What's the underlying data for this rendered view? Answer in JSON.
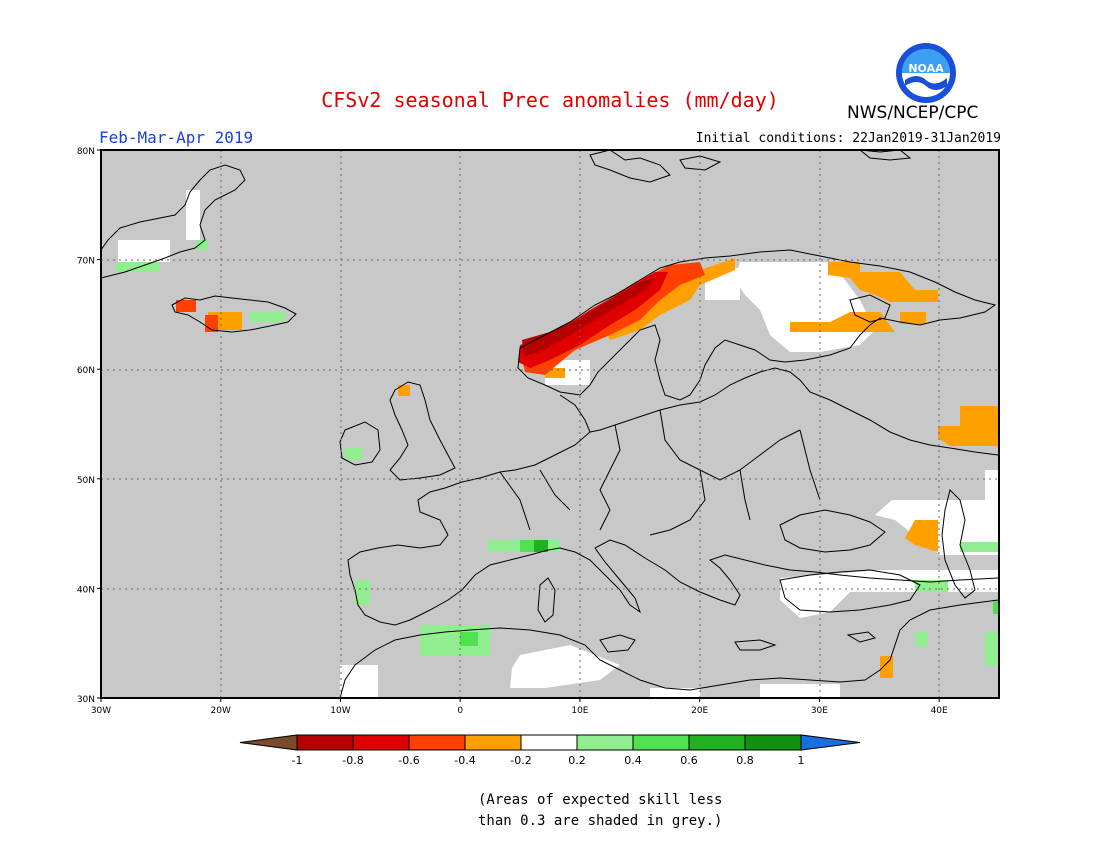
{
  "header": {
    "title": "CFSv2 seasonal Prec anomalies (mm/day)",
    "period": "Feb-Mar-Apr 2019",
    "initial_conditions": "Initial conditions: 22Jan2019-31Jan2019",
    "org": "NWS/NCEP/CPC",
    "logo_text": "NOAA"
  },
  "map": {
    "lat_labels": [
      "80N",
      "70N",
      "60N",
      "50N",
      "40N",
      "30N"
    ],
    "lon_labels": [
      "30W",
      "20W",
      "10W",
      "0",
      "10E",
      "20E",
      "30E",
      "40E"
    ],
    "extent": {
      "lon_min": -30,
      "lon_max": 45,
      "lat_min": 30,
      "lat_max": 80
    },
    "background_color": "#c8c8c8"
  },
  "legend": {
    "labels": [
      "-1",
      "-0.8",
      "-0.6",
      "-0.4",
      "-0.2",
      "0.2",
      "0.4",
      "0.6",
      "0.8",
      "1"
    ],
    "colors": [
      "#7a4a2a",
      "#b40000",
      "#e00000",
      "#ff4000",
      "#ff9f00",
      "#ffffff",
      "#90ee90",
      "#50e050",
      "#20b020",
      "#109010",
      "#1a6fe0"
    ]
  },
  "note": {
    "line1": "(Areas of expected skill less",
    "line2": "than 0.3 are shaded in grey.)"
  }
}
